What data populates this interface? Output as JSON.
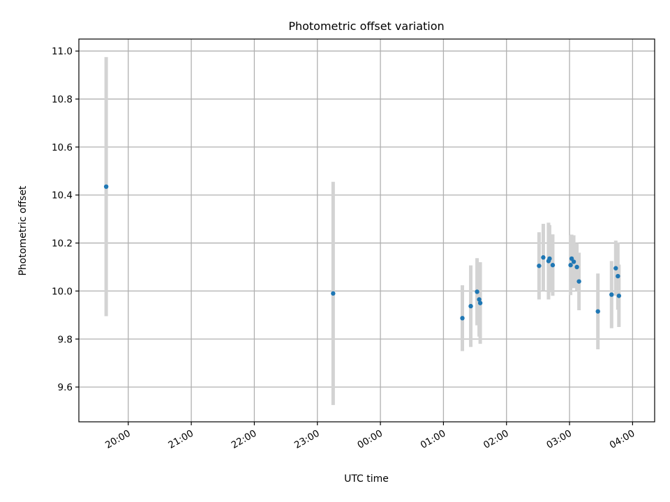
{
  "chart_data": {
    "type": "scatter",
    "title": "Photometric offset variation",
    "xlabel": "UTC time",
    "ylabel": "Photometric offset",
    "x_unit": "UTC time (hh:mm), night spanning midnight",
    "xticks": [
      "20:00",
      "21:00",
      "22:00",
      "23:00",
      "00:00",
      "01:00",
      "02:00",
      "03:00",
      "04:00"
    ],
    "yticks": [
      "9.6",
      "9.8",
      "10.0",
      "10.2",
      "10.4",
      "10.6",
      "10.8",
      "11.0"
    ],
    "xlim": [
      "19:13",
      "04:21"
    ],
    "ylim": [
      9.455,
      11.05
    ],
    "grid": true,
    "legend": "none",
    "colors": {
      "point": "#1f77b4",
      "errorbar": "#d3d3d3",
      "grid": "#b0b0b0"
    },
    "series": [
      {
        "points": [
          {
            "x": "19:39",
            "y": 10.435,
            "yerr": 0.54
          },
          {
            "x": "23:15",
            "y": 9.99,
            "yerr": 0.465
          },
          {
            "x": "01:18",
            "y": 9.887,
            "yerr": 0.137
          },
          {
            "x": "01:26",
            "y": 9.937,
            "yerr": 0.17
          },
          {
            "x": "01:32",
            "y": 9.997,
            "yerr": 0.14
          },
          {
            "x": "01:34",
            "y": 9.965,
            "yerr": 0.155
          },
          {
            "x": "01:35",
            "y": 9.95,
            "yerr": 0.17
          },
          {
            "x": "02:31",
            "y": 10.105,
            "yerr": 0.14
          },
          {
            "x": "02:35",
            "y": 10.14,
            "yerr": 0.14
          },
          {
            "x": "02:40",
            "y": 10.125,
            "yerr": 0.16
          },
          {
            "x": "02:41",
            "y": 10.135,
            "yerr": 0.14
          },
          {
            "x": "02:44",
            "y": 10.108,
            "yerr": 0.128
          },
          {
            "x": "03:01",
            "y": 10.108,
            "yerr": 0.125
          },
          {
            "x": "03:02",
            "y": 10.135,
            "yerr": 0.1
          },
          {
            "x": "03:04",
            "y": 10.122,
            "yerr": 0.11
          },
          {
            "x": "03:07",
            "y": 10.1,
            "yerr": 0.1
          },
          {
            "x": "03:09",
            "y": 10.04,
            "yerr": 0.12
          },
          {
            "x": "03:27",
            "y": 9.915,
            "yerr": 0.158
          },
          {
            "x": "03:40",
            "y": 9.985,
            "yerr": 0.14
          },
          {
            "x": "03:44",
            "y": 10.095,
            "yerr": 0.115
          },
          {
            "x": "03:46",
            "y": 10.062,
            "yerr": 0.14
          },
          {
            "x": "03:47",
            "y": 9.98,
            "yerr": 0.13
          }
        ]
      }
    ]
  }
}
